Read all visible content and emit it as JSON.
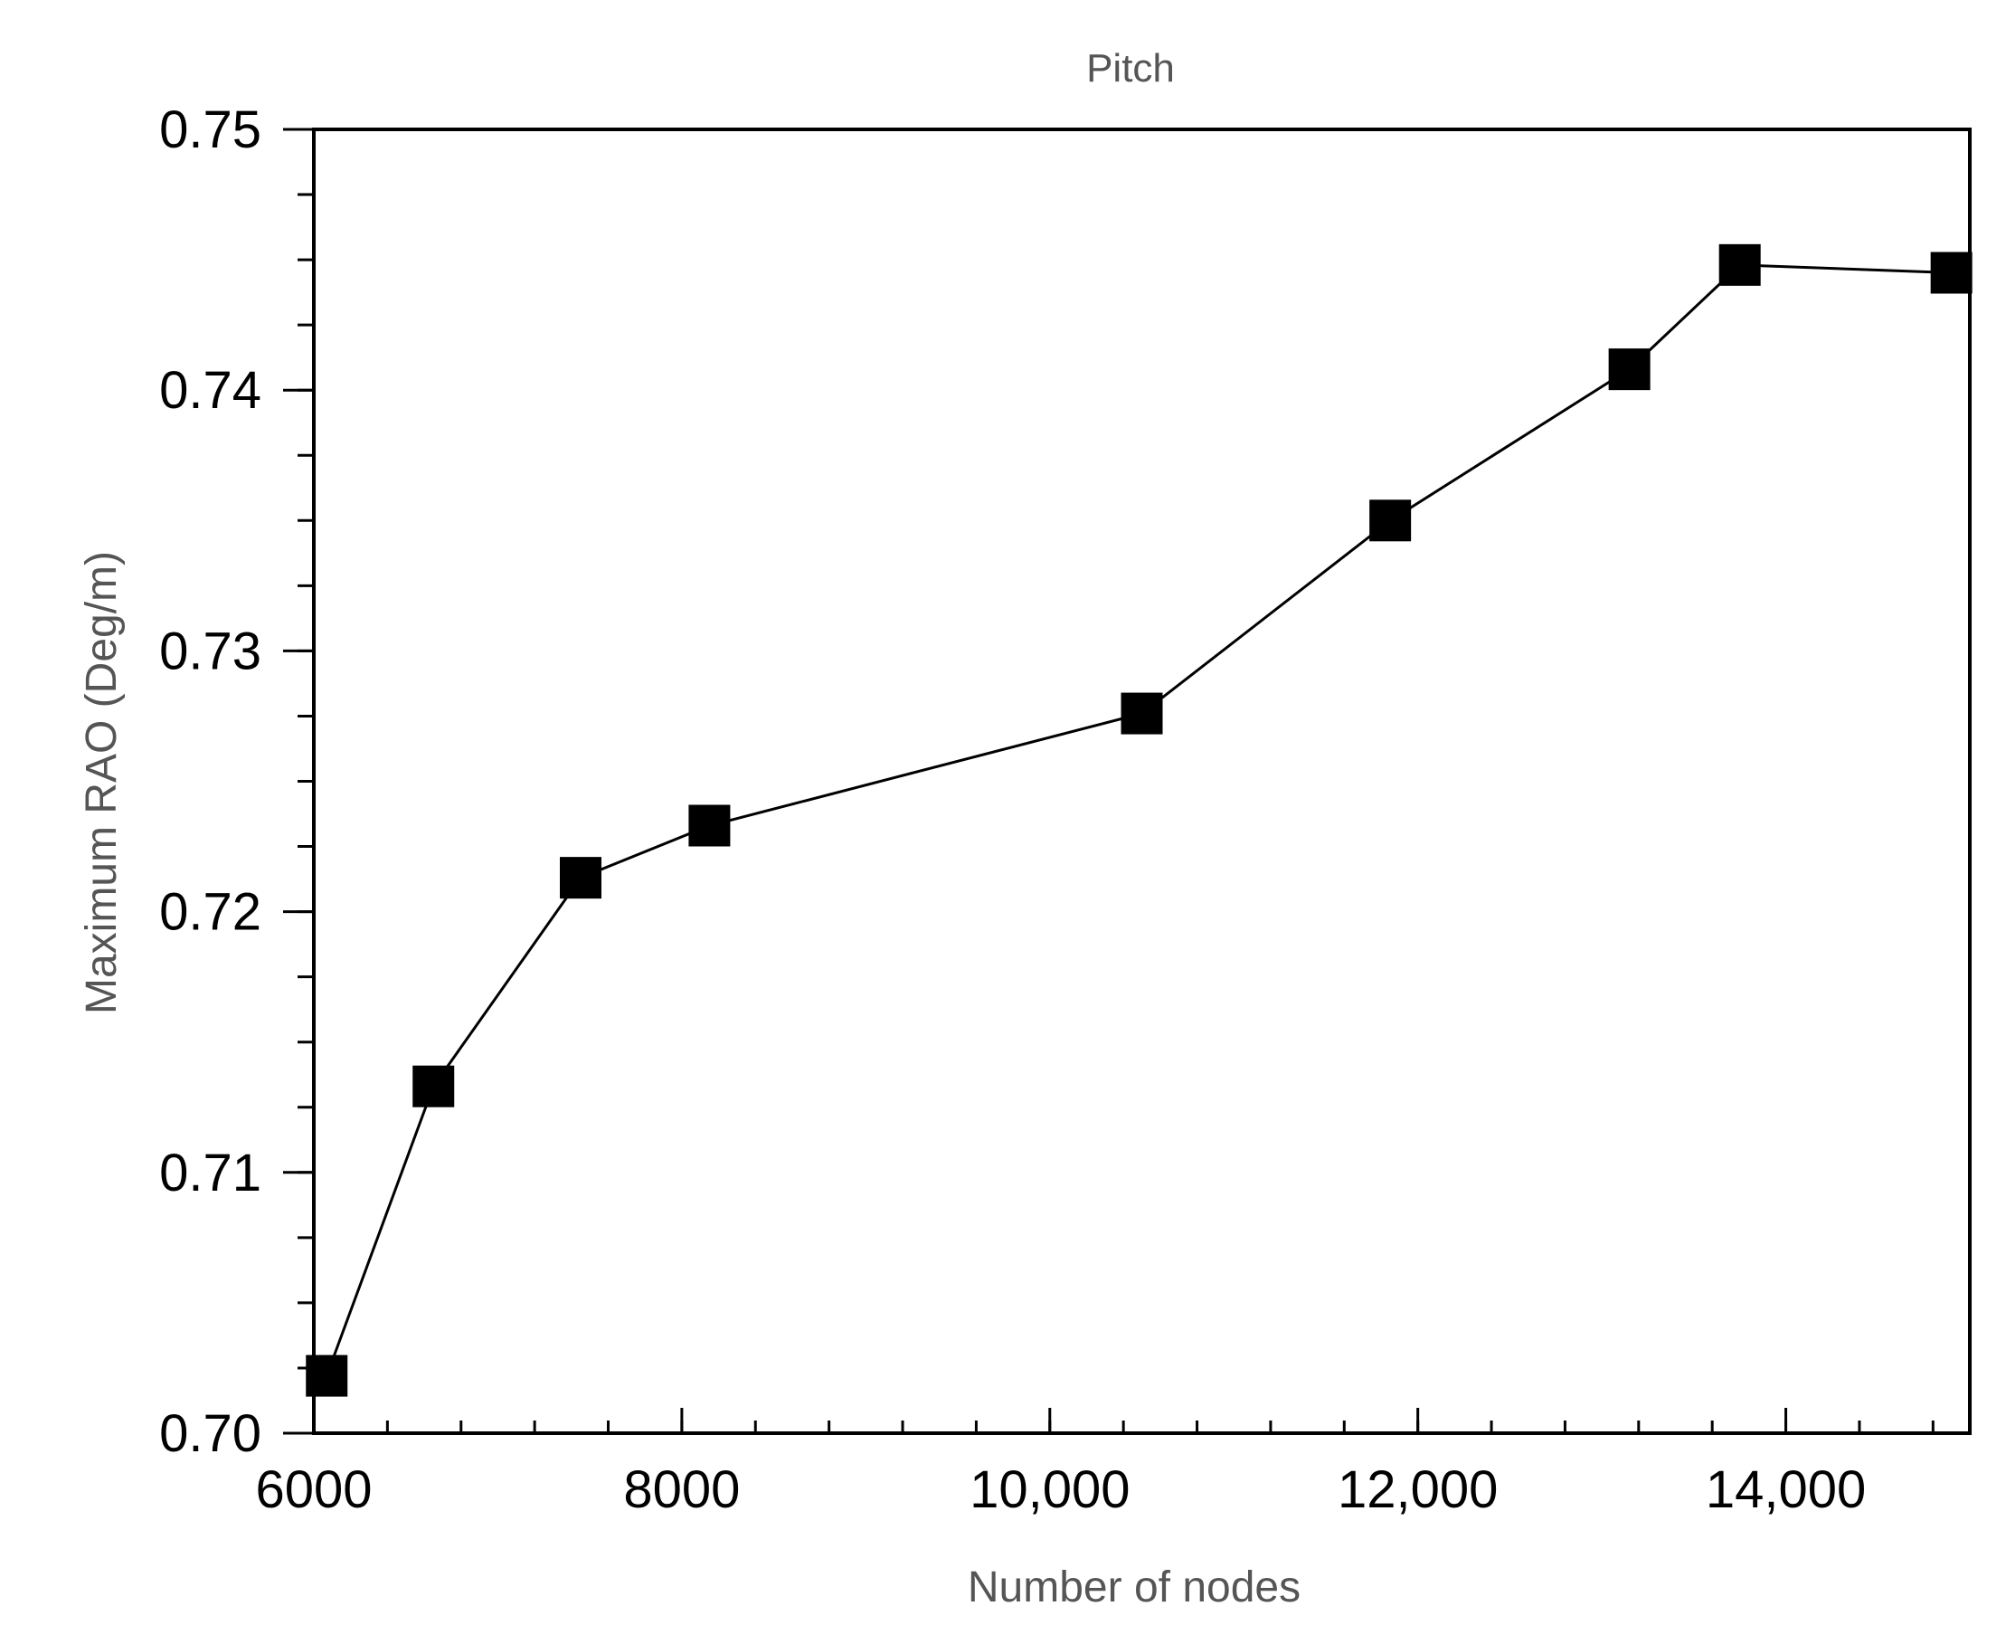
{
  "chart_data": {
    "type": "line",
    "title": "Pitch",
    "xlabel": "Number of nodes",
    "ylabel": "Maximum RAO (Deg/m)",
    "xlim": [
      6000,
      15000
    ],
    "ylim": [
      0.7,
      0.75
    ],
    "x_ticks": [
      6000,
      8000,
      10000,
      12000,
      14000
    ],
    "x_tick_labels": [
      "6000",
      "8000",
      "10,000",
      "12,000",
      "14,000"
    ],
    "y_ticks": [
      0.7,
      0.71,
      0.72,
      0.73,
      0.74,
      0.75
    ],
    "y_tick_labels": [
      "0.70",
      "0.71",
      "0.72",
      "0.73",
      "0.74",
      "0.75"
    ],
    "x_minor_step": 400,
    "y_minor_step": 0.0025,
    "grid": false,
    "legend": "none",
    "marker": "square",
    "line_color": "#000000",
    "marker_color": "#000000",
    "series": [
      {
        "x": [
          6070,
          6650,
          7450,
          8150,
          10500,
          11850,
          13150,
          13750,
          14900
        ],
        "y": [
          0.7022,
          0.7133,
          0.7213,
          0.7233,
          0.7276,
          0.735,
          0.7408,
          0.7448,
          0.7445
        ]
      }
    ]
  }
}
